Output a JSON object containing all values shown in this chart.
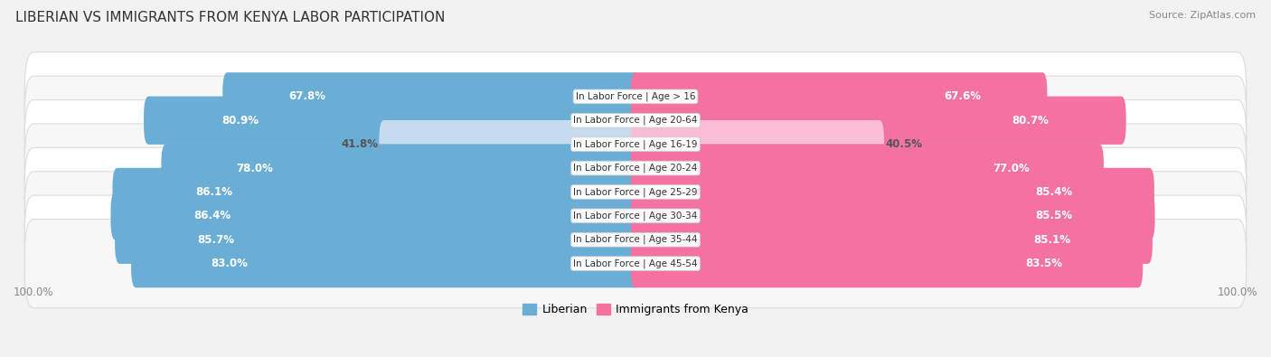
{
  "title": "LIBERIAN VS IMMIGRANTS FROM KENYA LABOR PARTICIPATION",
  "source": "Source: ZipAtlas.com",
  "categories": [
    "In Labor Force | Age > 16",
    "In Labor Force | Age 20-64",
    "In Labor Force | Age 16-19",
    "In Labor Force | Age 20-24",
    "In Labor Force | Age 25-29",
    "In Labor Force | Age 30-34",
    "In Labor Force | Age 35-44",
    "In Labor Force | Age 45-54"
  ],
  "liberian_values": [
    67.8,
    80.9,
    41.8,
    78.0,
    86.1,
    86.4,
    85.7,
    83.0
  ],
  "kenya_values": [
    67.6,
    80.7,
    40.5,
    77.0,
    85.4,
    85.5,
    85.1,
    83.5
  ],
  "liberian_color": "#6aaed6",
  "liberian_color_light": "#c6dcee",
  "kenya_color": "#f472a0",
  "kenya_color_light": "#f9bdd4",
  "label_color_dark": "#555555",
  "label_color_white": "#ffffff",
  "max_value": 100.0,
  "title_fontsize": 11,
  "label_fontsize": 8.5,
  "category_fontsize": 7.5,
  "legend_fontsize": 9,
  "background_color": "#f2f2f2",
  "row_bg_even": "#ffffff",
  "row_bg_odd": "#f7f7f7",
  "row_border_color": "#dddddd"
}
